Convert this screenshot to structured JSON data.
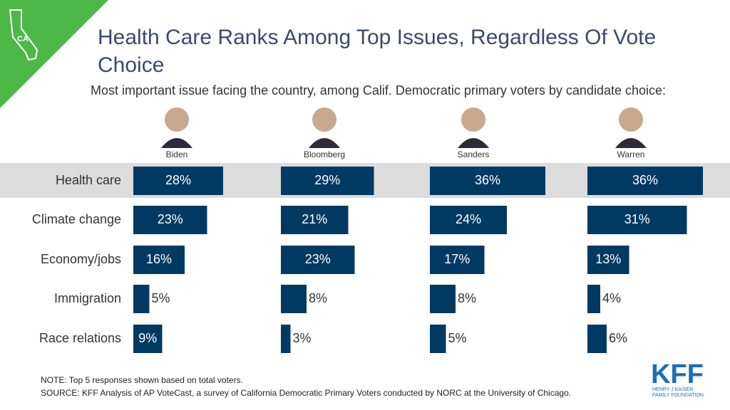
{
  "chart_data": {
    "type": "bar",
    "orientation": "horizontal",
    "title": "Health Care Ranks Among Top Issues, Regardless Of Vote Choice",
    "subtitle": "Most important issue facing the country, among Calif. Democratic primary voters by candidate choice:",
    "categories": [
      "Health care",
      "Climate change",
      "Economy/jobs",
      "Immigration",
      "Race relations"
    ],
    "series": [
      {
        "name": "Biden",
        "color": "#003a63",
        "values": [
          28,
          23,
          16,
          5,
          9
        ],
        "value_labels": [
          "28%",
          "23%",
          "16%",
          "5%",
          "9%"
        ]
      },
      {
        "name": "Bloomberg",
        "color": "#003a63",
        "values": [
          29,
          21,
          23,
          8,
          3
        ],
        "value_labels": [
          "29%",
          "21%",
          "23%",
          "8%",
          "3%"
        ]
      },
      {
        "name": "Sanders",
        "color": "#003a63",
        "values": [
          36,
          24,
          17,
          8,
          5
        ],
        "value_labels": [
          "36%",
          "24%",
          "17%",
          "8%",
          "5%"
        ]
      },
      {
        "name": "Warren",
        "color": "#003a63",
        "values": [
          36,
          31,
          13,
          4,
          6
        ],
        "value_labels": [
          "36%",
          "31%",
          "13%",
          "4%",
          "6%"
        ]
      }
    ],
    "note": "NOTE: Top 5 responses shown based on total voters.",
    "source": "SOURCE: KFF Analysis of AP VoteCast, a survey of California Democratic Primary Voters conducted by NORC at the University of Chicago."
  },
  "badge": "CA",
  "logo": {
    "name": "KFF",
    "tagline_1": "HENRY J KAISER",
    "tagline_2": "FAMILY FOUNDATION"
  }
}
